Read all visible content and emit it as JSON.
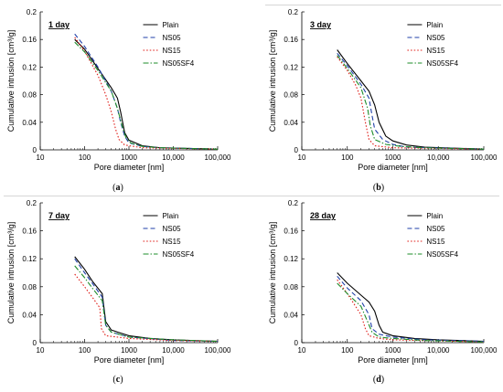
{
  "figure": {
    "x_label": "Pore diameter [nm]",
    "y_label": "Cumulative intrusion [cm³/g]",
    "x_ticks": [
      "10",
      "100",
      "1000",
      "10,000",
      "100,000"
    ],
    "y_ticks": [
      "0",
      "0.04",
      "0.08",
      "0.12",
      "0.16",
      "0.2"
    ],
    "series_styles": [
      {
        "name": "Plain",
        "color": "#000000",
        "dash": "solid"
      },
      {
        "name": "NS05",
        "color": "#1f3fa8",
        "dash": "dash"
      },
      {
        "name": "NS15",
        "color": "#e0201b",
        "dash": "dot"
      },
      {
        "name": "NS05SF4",
        "color": "#1e8c2a",
        "dash": "dashdot"
      }
    ]
  },
  "chart_data": [
    {
      "type": "line",
      "panel_label": "(a)",
      "age_label": "1 day",
      "xlabel": "Pore diameter [nm]",
      "ylabel": "Cumulative intrusion [cm³/g]",
      "x_scale": "log",
      "xlim": [
        10,
        100000
      ],
      "ylim": [
        0,
        0.2
      ],
      "legend_position": "top-right",
      "grid": false,
      "series": [
        {
          "name": "Plain",
          "points": [
            [
              60,
              0.16
            ],
            [
              100,
              0.146
            ],
            [
              200,
              0.118
            ],
            [
              400,
              0.09
            ],
            [
              550,
              0.075
            ],
            [
              650,
              0.055
            ],
            [
              800,
              0.025
            ],
            [
              1000,
              0.014
            ],
            [
              2000,
              0.006
            ],
            [
              5000,
              0.003
            ],
            [
              100000,
              0.001
            ]
          ]
        },
        {
          "name": "NS05",
          "points": [
            [
              60,
              0.168
            ],
            [
              100,
              0.15
            ],
            [
              200,
              0.12
            ],
            [
              400,
              0.085
            ],
            [
              550,
              0.06
            ],
            [
              650,
              0.04
            ],
            [
              800,
              0.02
            ],
            [
              1000,
              0.01
            ],
            [
              2000,
              0.005
            ],
            [
              5000,
              0.003
            ],
            [
              100000,
              0.001
            ]
          ]
        },
        {
          "name": "NS15",
          "points": [
            [
              60,
              0.163
            ],
            [
              100,
              0.143
            ],
            [
              200,
              0.108
            ],
            [
              300,
              0.08
            ],
            [
              400,
              0.055
            ],
            [
              500,
              0.03
            ],
            [
              600,
              0.015
            ],
            [
              800,
              0.007
            ],
            [
              2000,
              0.003
            ],
            [
              100000,
              0.001
            ]
          ]
        },
        {
          "name": "NS05SF4",
          "points": [
            [
              60,
              0.156
            ],
            [
              100,
              0.142
            ],
            [
              200,
              0.115
            ],
            [
              400,
              0.085
            ],
            [
              550,
              0.06
            ],
            [
              700,
              0.035
            ],
            [
              850,
              0.018
            ],
            [
              1100,
              0.01
            ],
            [
              2000,
              0.005
            ],
            [
              5000,
              0.003
            ],
            [
              100000,
              0.001
            ]
          ]
        }
      ]
    },
    {
      "type": "line",
      "panel_label": "(b)",
      "age_label": "3 day",
      "xlabel": "Pore diameter [nm]",
      "ylabel": "Cumulative intrusion [cm³/g]",
      "x_scale": "log",
      "xlim": [
        10,
        100000
      ],
      "ylim": [
        0,
        0.2
      ],
      "legend_position": "top-right",
      "grid": false,
      "series": [
        {
          "name": "Plain",
          "points": [
            [
              60,
              0.145
            ],
            [
              100,
              0.125
            ],
            [
              200,
              0.1
            ],
            [
              300,
              0.085
            ],
            [
              400,
              0.065
            ],
            [
              500,
              0.04
            ],
            [
              700,
              0.02
            ],
            [
              1000,
              0.013
            ],
            [
              2000,
              0.007
            ],
            [
              5000,
              0.004
            ],
            [
              100000,
              0.001
            ]
          ]
        },
        {
          "name": "NS05",
          "points": [
            [
              60,
              0.14
            ],
            [
              100,
              0.122
            ],
            [
              200,
              0.095
            ],
            [
              300,
              0.075
            ],
            [
              350,
              0.05
            ],
            [
              400,
              0.03
            ],
            [
              600,
              0.015
            ],
            [
              1000,
              0.008
            ],
            [
              2000,
              0.004
            ],
            [
              100000,
              0.001
            ]
          ]
        },
        {
          "name": "NS15",
          "points": [
            [
              60,
              0.135
            ],
            [
              100,
              0.115
            ],
            [
              150,
              0.095
            ],
            [
              200,
              0.075
            ],
            [
              250,
              0.04
            ],
            [
              300,
              0.015
            ],
            [
              400,
              0.006
            ],
            [
              1000,
              0.003
            ],
            [
              100000,
              0.001
            ]
          ]
        },
        {
          "name": "NS05SF4",
          "points": [
            [
              60,
              0.137
            ],
            [
              100,
              0.118
            ],
            [
              200,
              0.09
            ],
            [
              280,
              0.06
            ],
            [
              320,
              0.035
            ],
            [
              400,
              0.015
            ],
            [
              700,
              0.008
            ],
            [
              1500,
              0.005
            ],
            [
              5000,
              0.003
            ],
            [
              100000,
              0.001
            ]
          ]
        }
      ]
    },
    {
      "type": "line",
      "panel_label": "(c)",
      "age_label": "7 day",
      "xlabel": "Pore diameter [nm]",
      "ylabel": "Cumulative intrusion [cm³/g]",
      "x_scale": "log",
      "xlim": [
        10,
        100000
      ],
      "ylim": [
        0,
        0.2
      ],
      "legend_position": "top-right",
      "grid": false,
      "series": [
        {
          "name": "Plain",
          "points": [
            [
              60,
              0.123
            ],
            [
              100,
              0.105
            ],
            [
              150,
              0.088
            ],
            [
              250,
              0.07
            ],
            [
              300,
              0.03
            ],
            [
              400,
              0.018
            ],
            [
              1000,
              0.01
            ],
            [
              3000,
              0.006
            ],
            [
              10000,
              0.004
            ],
            [
              100000,
              0.002
            ]
          ]
        },
        {
          "name": "NS05",
          "points": [
            [
              60,
              0.12
            ],
            [
              100,
              0.1
            ],
            [
              150,
              0.085
            ],
            [
              250,
              0.065
            ],
            [
              300,
              0.025
            ],
            [
              400,
              0.015
            ],
            [
              1000,
              0.008
            ],
            [
              10000,
              0.003
            ],
            [
              100000,
              0.002
            ]
          ]
        },
        {
          "name": "NS15",
          "points": [
            [
              60,
              0.098
            ],
            [
              100,
              0.08
            ],
            [
              150,
              0.065
            ],
            [
              220,
              0.05
            ],
            [
              240,
              0.02
            ],
            [
              300,
              0.01
            ],
            [
              1000,
              0.006
            ],
            [
              10000,
              0.003
            ],
            [
              100000,
              0.002
            ]
          ]
        },
        {
          "name": "NS05SF4",
          "points": [
            [
              60,
              0.11
            ],
            [
              100,
              0.093
            ],
            [
              150,
              0.078
            ],
            [
              250,
              0.06
            ],
            [
              300,
              0.025
            ],
            [
              400,
              0.015
            ],
            [
              1000,
              0.008
            ],
            [
              10000,
              0.004
            ],
            [
              100000,
              0.002
            ]
          ]
        }
      ]
    },
    {
      "type": "line",
      "panel_label": "(d)",
      "age_label": "28 day",
      "xlabel": "Pore diameter [nm]",
      "ylabel": "Cumulative intrusion [cm³/g]",
      "x_scale": "log",
      "xlim": [
        10,
        100000
      ],
      "ylim": [
        0,
        0.2
      ],
      "legend_position": "top-right",
      "grid": false,
      "series": [
        {
          "name": "Plain",
          "points": [
            [
              60,
              0.1
            ],
            [
              100,
              0.085
            ],
            [
              200,
              0.068
            ],
            [
              300,
              0.058
            ],
            [
              400,
              0.045
            ],
            [
              500,
              0.025
            ],
            [
              600,
              0.015
            ],
            [
              1000,
              0.01
            ],
            [
              3000,
              0.006
            ],
            [
              10000,
              0.004
            ],
            [
              100000,
              0.002
            ]
          ]
        },
        {
          "name": "NS05",
          "points": [
            [
              60,
              0.095
            ],
            [
              100,
              0.078
            ],
            [
              200,
              0.06
            ],
            [
              300,
              0.04
            ],
            [
              350,
              0.02
            ],
            [
              500,
              0.012
            ],
            [
              1000,
              0.008
            ],
            [
              5000,
              0.004
            ],
            [
              100000,
              0.002
            ]
          ]
        },
        {
          "name": "NS15",
          "points": [
            [
              60,
              0.09
            ],
            [
              100,
              0.07
            ],
            [
              200,
              0.04
            ],
            [
              250,
              0.02
            ],
            [
              300,
              0.01
            ],
            [
              500,
              0.006
            ],
            [
              1000,
              0.004
            ],
            [
              100000,
              0.001
            ]
          ]
        },
        {
          "name": "NS05SF4",
          "points": [
            [
              60,
              0.085
            ],
            [
              100,
              0.07
            ],
            [
              200,
              0.052
            ],
            [
              280,
              0.03
            ],
            [
              350,
              0.015
            ],
            [
              500,
              0.008
            ],
            [
              1000,
              0.006
            ],
            [
              5000,
              0.003
            ],
            [
              100000,
              0.001
            ]
          ]
        }
      ]
    }
  ]
}
